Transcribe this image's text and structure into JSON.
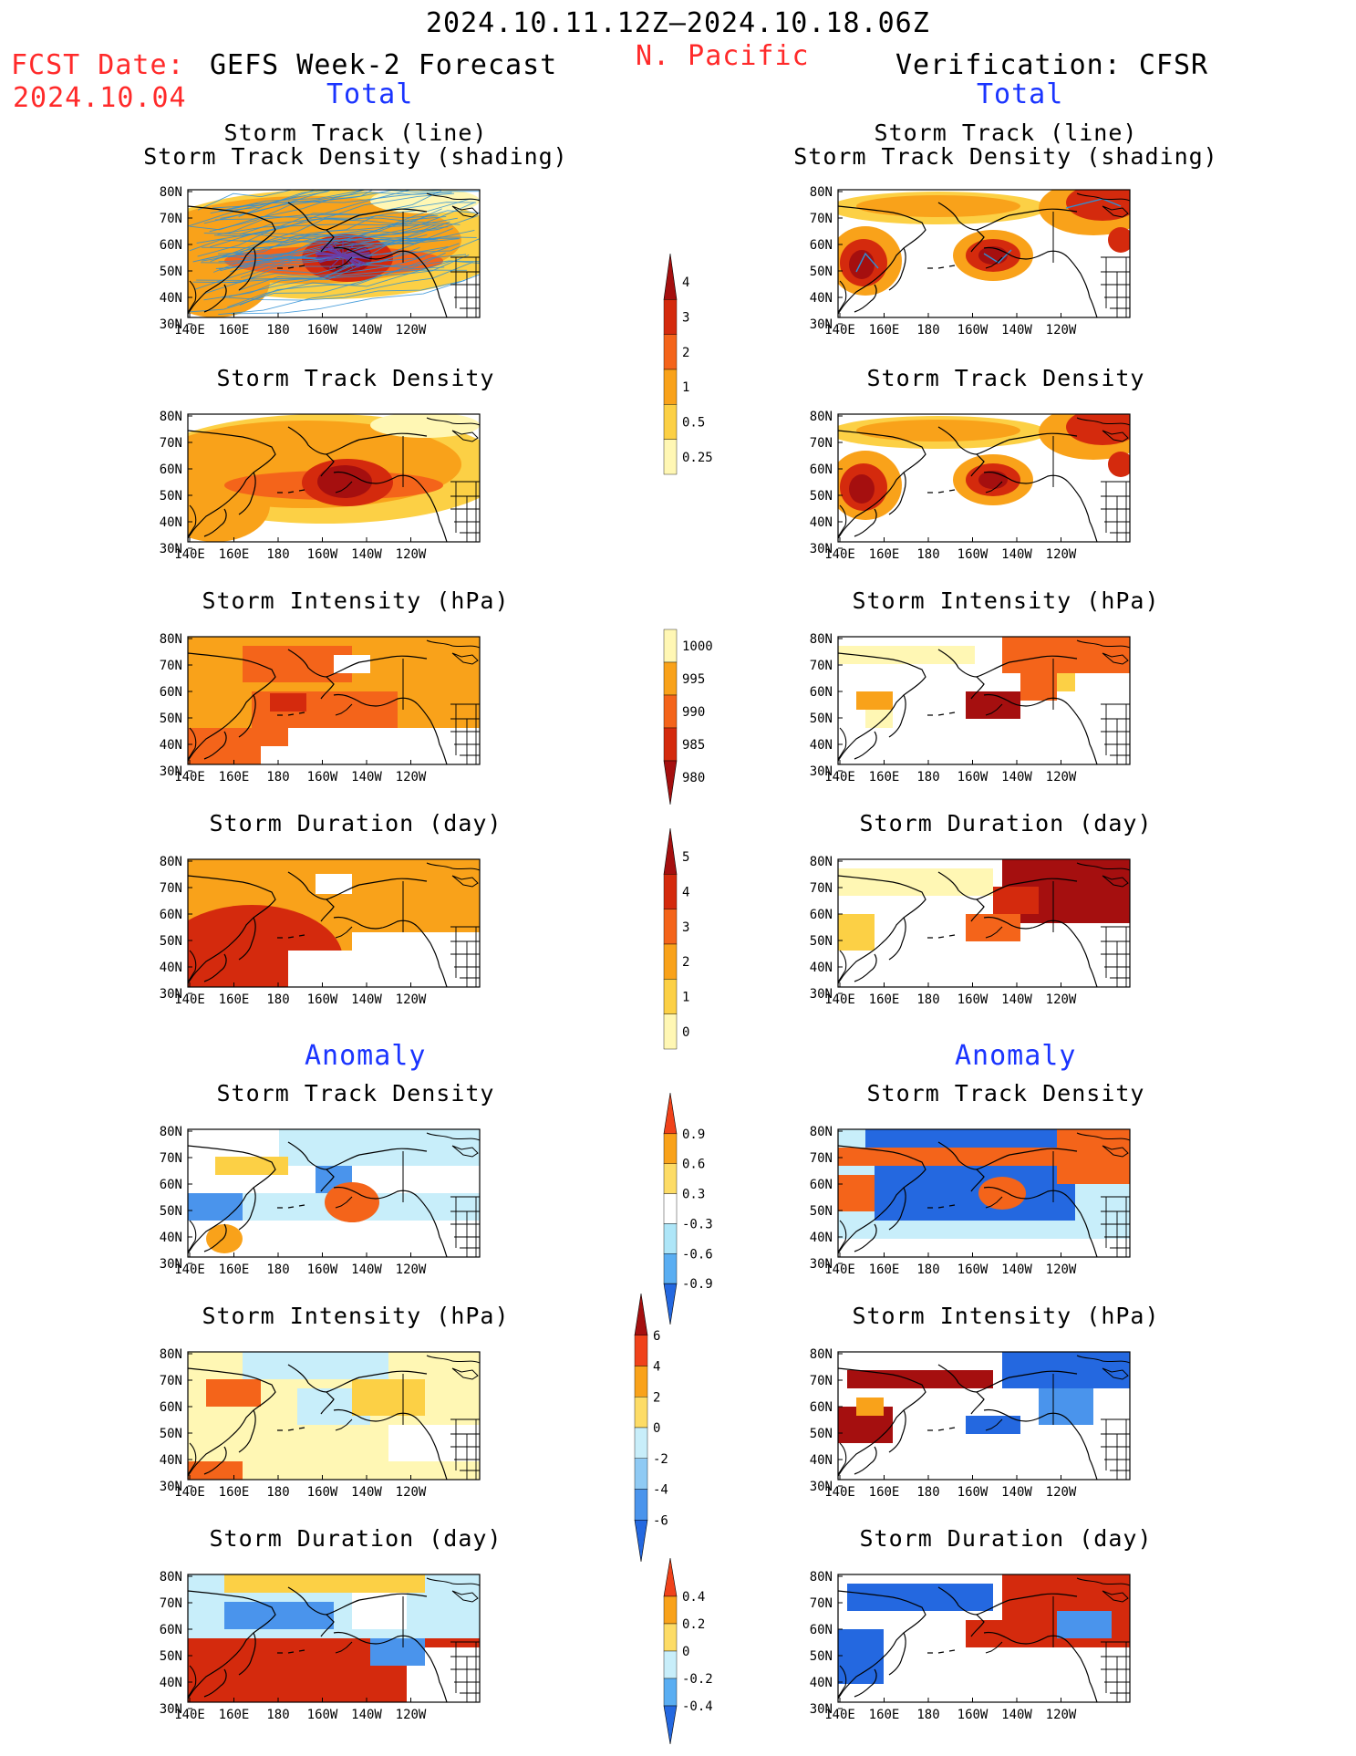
{
  "header": {
    "period": "2024.10.11.12Z–2024.10.18.06Z",
    "region": "N. Pacific",
    "fcst_label": "FCST Date:",
    "fcst_date": "2024.10.04",
    "left_title": "GEFS Week-2 Forecast",
    "right_title": "Verification: CFSR",
    "total_label": "Total",
    "anomaly_label": "Anomaly"
  },
  "panel_titles": {
    "track_line": "Storm Track (line)",
    "track_shading": "Storm Track Density (shading)",
    "density": "Storm Track Density",
    "intensity": "Storm Intensity (hPa)",
    "duration": "Storm Duration (day)"
  },
  "axes": {
    "lon_ticks": [
      "140E",
      "160E",
      "180",
      "160W",
      "140W",
      "120W"
    ],
    "lat_ticks": [
      "80N",
      "70N",
      "60N",
      "50N",
      "40N",
      "30N"
    ]
  },
  "colorbars": {
    "density_total": {
      "ticks": [
        "4",
        "3",
        "2",
        "1",
        "0.5",
        "0.25"
      ],
      "colors": [
        "#a50f0f",
        "#d42a0d",
        "#f4641a",
        "#f9a21a",
        "#fcd045",
        "#fff7b4"
      ],
      "extend": "top"
    },
    "intensity_total": {
      "ticks": [
        "1000",
        "995",
        "990",
        "985",
        "980"
      ],
      "colors": [
        "#fff7b4",
        "#f9a21a",
        "#f4641a",
        "#d42a0d",
        "#a50f0f"
      ],
      "extend": "bottom"
    },
    "duration_total": {
      "ticks": [
        "5",
        "4",
        "3",
        "2",
        "1",
        "0"
      ],
      "colors": [
        "#a50f0f",
        "#d42a0d",
        "#f4641a",
        "#f9a21a",
        "#fcd045",
        "#fff7b4"
      ],
      "extend": "top"
    },
    "density_anom": {
      "ticks": [
        "0.9",
        "0.6",
        "0.3",
        "-0.3",
        "-0.6",
        "-0.9"
      ],
      "colors": [
        "#f0421a",
        "#f9a21a",
        "#fddc66",
        "#ffffff",
        "#aee6f8",
        "#5aaef2",
        "#2468e0"
      ],
      "extend": "both"
    },
    "intensity_anom": {
      "ticks": [
        "6",
        "4",
        "2",
        "0",
        "-2",
        "-4",
        "-6"
      ],
      "colors": [
        "#a50f0f",
        "#f0421a",
        "#f9a21a",
        "#fddc66",
        "#c8eefa",
        "#8fcaf4",
        "#4a94ec",
        "#2468e0"
      ],
      "extend": "both"
    },
    "duration_anom": {
      "ticks": [
        "0.4",
        "0.2",
        "0",
        "-0.2",
        "-0.4"
      ],
      "colors": [
        "#f0421a",
        "#f9a21a",
        "#fddc66",
        "#c8eefa",
        "#5aaef2",
        "#2468e0"
      ],
      "extend": "both"
    }
  },
  "colors": {
    "land_outline": "#000000",
    "track_line": "#2e8fd6",
    "track_dense": "#6a3ea8",
    "warm": [
      "#fff7b4",
      "#fcd045",
      "#f9a21a",
      "#f4641a",
      "#d42a0d",
      "#a50f0f"
    ],
    "cool": [
      "#c8eefa",
      "#8fcaf4",
      "#4a94ec",
      "#2468e0"
    ]
  }
}
